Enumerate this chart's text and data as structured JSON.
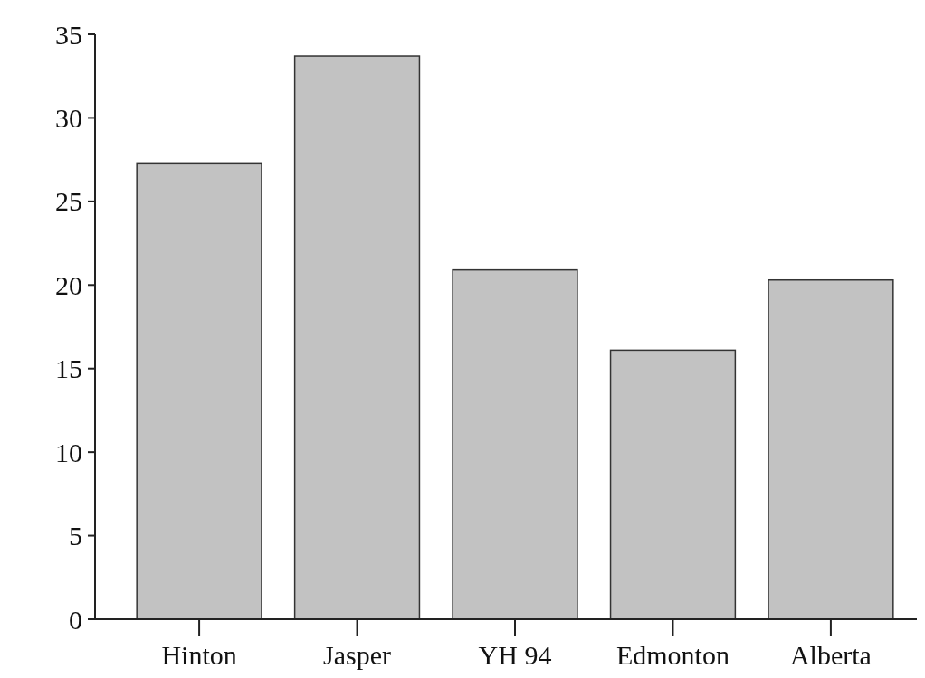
{
  "chart_data": {
    "type": "bar",
    "categories": [
      "Hinton",
      "Jasper",
      "YH 94",
      "Edmonton",
      "Alberta"
    ],
    "values": [
      27.3,
      33.7,
      20.9,
      16.1,
      20.3
    ],
    "color": "#c2c2c2",
    "ylim": [
      0,
      35
    ],
    "yticks": [
      0,
      5,
      10,
      15,
      20,
      25,
      30,
      35
    ],
    "grid": false
  }
}
